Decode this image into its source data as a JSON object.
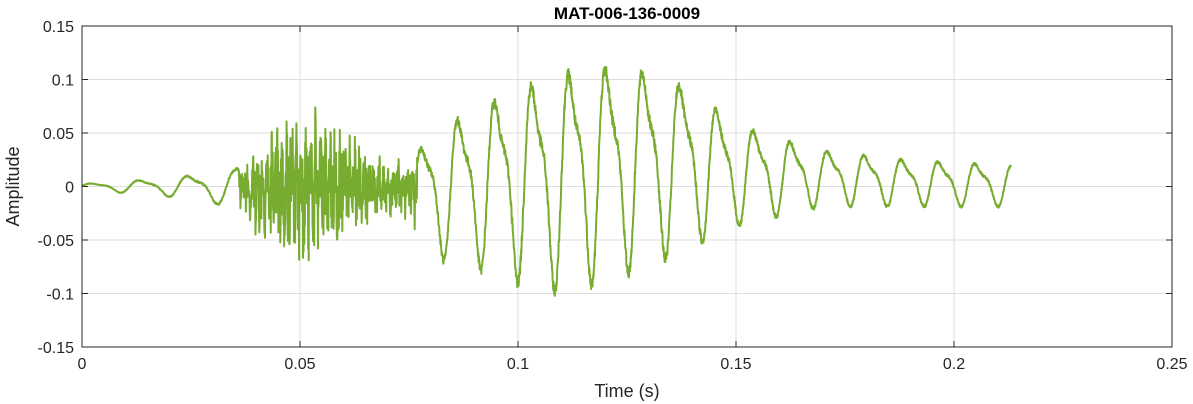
{
  "chart_data": {
    "type": "line",
    "title": "MAT-006-136-0009",
    "xlabel": "Time (s)",
    "ylabel": "Amplitude",
    "xlim": [
      0,
      0.25
    ],
    "ylim": [
      -0.15,
      0.15
    ],
    "grid": true,
    "x_ticks": [
      0,
      0.05,
      0.1,
      0.15,
      0.2,
      0.25
    ],
    "x_tick_labels": [
      "0",
      "0.05",
      "0.1",
      "0.15",
      "0.2",
      "0.25"
    ],
    "y_ticks": [
      -0.15,
      -0.1,
      -0.05,
      0,
      0.05,
      0.1,
      0.15
    ],
    "y_tick_labels": [
      "-0.15",
      "-0.1",
      "-0.05",
      "0",
      "0.05",
      "0.1",
      "0.15"
    ],
    "series": [
      {
        "color": "#77ac30",
        "duration": 0.213,
        "envelope": {
          "t": [
            0,
            0.02,
            0.035,
            0.045,
            0.05,
            0.055,
            0.065,
            0.075,
            0.08,
            0.09,
            0.1,
            0.11,
            0.115,
            0.13,
            0.14,
            0.15,
            0.17,
            0.19,
            0.213
          ],
          "upper": [
            0.003,
            0.01,
            0.02,
            0.07,
            0.08,
            0.075,
            0.04,
            0.025,
            0.065,
            0.09,
            0.115,
            0.13,
            0.14,
            0.13,
            0.11,
            0.07,
            0.04,
            0.03,
            0.025
          ],
          "lower": [
            -0.003,
            -0.01,
            -0.02,
            -0.075,
            -0.08,
            -0.075,
            -0.04,
            -0.03,
            -0.07,
            -0.08,
            -0.095,
            -0.105,
            -0.1,
            -0.08,
            -0.06,
            -0.04,
            -0.02,
            -0.02,
            -0.02
          ]
        }
      }
    ]
  }
}
